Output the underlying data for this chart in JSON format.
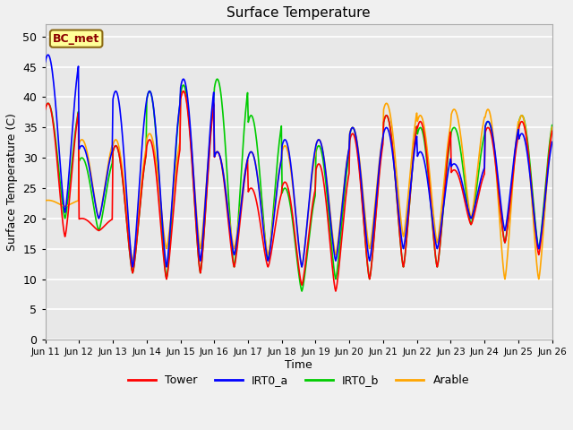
{
  "title": "Surface Temperature",
  "ylabel": "Surface Temperature (C)",
  "xlabel": "Time",
  "ylim": [
    0,
    52
  ],
  "yticks": [
    0,
    5,
    10,
    15,
    20,
    25,
    30,
    35,
    40,
    45,
    50
  ],
  "xtick_labels": [
    "Jun 11",
    "Jun 12",
    "Jun 13",
    "Jun 14",
    "Jun 15",
    "Jun 16",
    "Jun 17",
    "Jun 18",
    "Jun 19",
    "Jun 20",
    "Jun 21",
    "Jun 22",
    "Jun 23",
    "Jun 24",
    "Jun 25",
    "Jun 26"
  ],
  "annotation_text": "BC_met",
  "annotation_color": "#8B0000",
  "annotation_bg": "#FFFF99",
  "annotation_edge": "#8B6914",
  "colors": {
    "Tower": "#FF0000",
    "IRT0_a": "#0000FF",
    "IRT0_b": "#00CC00",
    "Arable": "#FFA500"
  },
  "bg_color": "#E8E8E8",
  "plot_bg": "#F0F0F0",
  "grid_color": "#FFFFFF",
  "line_width": 1.2,
  "n_days": 15,
  "pts_per_day": 48,
  "tower_day_data": [
    [
      17,
      39
    ],
    [
      18,
      20
    ],
    [
      11,
      32
    ],
    [
      10,
      33
    ],
    [
      11,
      41
    ],
    [
      12,
      31
    ],
    [
      12,
      25
    ],
    [
      9,
      26
    ],
    [
      8,
      29
    ],
    [
      10,
      34
    ],
    [
      12,
      37
    ],
    [
      12,
      36
    ],
    [
      19,
      28
    ],
    [
      16,
      35
    ],
    [
      14,
      36
    ]
  ],
  "irt0a_day_data": [
    [
      21,
      47
    ],
    [
      20,
      32
    ],
    [
      12,
      41
    ],
    [
      12,
      41
    ],
    [
      13,
      43
    ],
    [
      14,
      31
    ],
    [
      13,
      31
    ],
    [
      12,
      33
    ],
    [
      13,
      33
    ],
    [
      13,
      35
    ],
    [
      15,
      35
    ],
    [
      15,
      31
    ],
    [
      20,
      29
    ],
    [
      18,
      36
    ],
    [
      15,
      34
    ]
  ],
  "irt0b_day_data": [
    [
      20,
      39
    ],
    [
      18,
      30
    ],
    [
      11,
      32
    ],
    [
      10,
      41
    ],
    [
      11,
      42
    ],
    [
      12,
      43
    ],
    [
      13,
      37
    ],
    [
      8,
      25
    ],
    [
      10,
      32
    ],
    [
      10,
      35
    ],
    [
      12,
      37
    ],
    [
      12,
      35
    ],
    [
      19,
      35
    ],
    [
      16,
      36
    ],
    [
      15,
      37
    ]
  ],
  "arable_day_data": [
    [
      22,
      23
    ],
    [
      20,
      33
    ],
    [
      13,
      33
    ],
    [
      15,
      34
    ],
    [
      15,
      41
    ],
    [
      15,
      31
    ],
    [
      14,
      31
    ],
    [
      12,
      32
    ],
    [
      14,
      33
    ],
    [
      15,
      35
    ],
    [
      17,
      39
    ],
    [
      16,
      37
    ],
    [
      20,
      38
    ],
    [
      10,
      38
    ],
    [
      10,
      37
    ]
  ]
}
